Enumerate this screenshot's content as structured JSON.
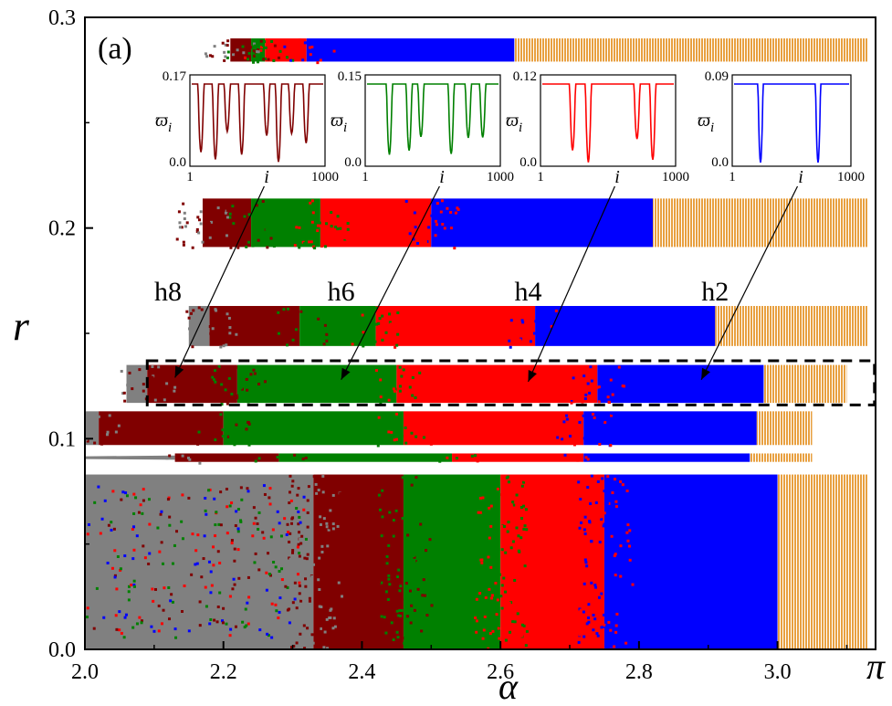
{
  "chart_data": {
    "type": "heatmap",
    "panel_label": "(a)",
    "xlabel": "α",
    "ylabel": "r",
    "xlim": [
      2.0,
      3.1416
    ],
    "ylim": [
      0.0,
      0.3
    ],
    "x_ticks": [
      {
        "value": 2.0,
        "label": "2.0"
      },
      {
        "value": 2.2,
        "label": "2.2"
      },
      {
        "value": 2.4,
        "label": "2.4"
      },
      {
        "value": 2.6,
        "label": "2.6"
      },
      {
        "value": 2.8,
        "label": "2.8"
      },
      {
        "value": 3.0,
        "label": "3.0"
      },
      {
        "value": 3.1416,
        "label": "π"
      }
    ],
    "y_ticks": [
      {
        "value": 0.0,
        "label": "0.0"
      },
      {
        "value": 0.1,
        "label": "0.1"
      },
      {
        "value": 0.2,
        "label": "0.2"
      },
      {
        "value": 0.3,
        "label": "0.3"
      }
    ],
    "colors": {
      "gray": "#808080",
      "h8": "#800000",
      "h6": "#008000",
      "h4": "#ff0000",
      "h2": "#0000ff",
      "orange": "#e8a040"
    },
    "bands": [
      {
        "y0": 0.0,
        "y1": 0.083,
        "start": 2.0,
        "bound_gray": 2.33,
        "bound_h8": 2.46,
        "bound_h6": 2.6,
        "bound_h4": 2.75,
        "bound_h2": 3.0,
        "orange_end": 3.13
      },
      {
        "y0": 0.089,
        "y1": 0.093,
        "start": 2.0,
        "bound_gray": 2.13,
        "bound_h8": 2.28,
        "bound_h6": 2.53,
        "bound_h4": 2.72,
        "bound_h2": 2.96,
        "orange_end": 3.05
      },
      {
        "y0": 0.097,
        "y1": 0.113,
        "start": 2.0,
        "bound_gray": 2.02,
        "bound_h8": 2.2,
        "bound_h6": 2.46,
        "bound_h4": 2.72,
        "bound_h2": 2.97,
        "orange_end": 3.05
      },
      {
        "y0": 0.117,
        "y1": 0.135,
        "start": 2.06,
        "bound_gray": 2.09,
        "bound_h8": 2.22,
        "bound_h6": 2.45,
        "bound_h4": 2.74,
        "bound_h2": 2.98,
        "orange_end": 3.1
      },
      {
        "y0": 0.144,
        "y1": 0.163,
        "start": 2.15,
        "bound_gray": 2.18,
        "bound_h8": 2.31,
        "bound_h6": 2.42,
        "bound_h4": 2.65,
        "bound_h2": 2.91,
        "orange_end": 3.13
      },
      {
        "y0": 0.191,
        "y1": 0.214,
        "start": 2.17,
        "bound_gray": 2.17,
        "bound_h8": 2.24,
        "bound_h6": 2.34,
        "bound_h4": 2.5,
        "bound_h2": 2.82,
        "orange_end": 3.13
      },
      {
        "y0": 0.279,
        "y1": 0.29,
        "start": 2.21,
        "bound_gray": 2.21,
        "bound_h8": 2.24,
        "bound_h6": 2.26,
        "bound_h4": 2.32,
        "bound_h2": 2.62,
        "orange_end": 3.13
      }
    ],
    "region_labels": [
      {
        "label": "h8",
        "x": 2.12,
        "y": 0.17
      },
      {
        "label": "h6",
        "x": 2.37,
        "y": 0.17
      },
      {
        "label": "h4",
        "x": 2.64,
        "y": 0.17
      },
      {
        "label": "h2",
        "x": 2.91,
        "y": 0.17
      }
    ],
    "highlight_box": {
      "x0": 2.09,
      "x1": 3.14,
      "y0": 0.116,
      "y1": 0.137
    },
    "insets": [
      {
        "name": "inset-h8",
        "color": "#800000",
        "ylabel": "ϖ",
        "ylabel_sub": "i",
        "xlabel": "i",
        "ymax_label": "0.17",
        "ymin_label": "0.0",
        "xmin_label": "1",
        "xmax_label": "1000",
        "n_dips": 8,
        "dip_positions": [
          0.07,
          0.18,
          0.27,
          0.38,
          0.57,
          0.66,
          0.76,
          0.87
        ],
        "arrow_target": {
          "x": 2.13,
          "y": 0.129
        }
      },
      {
        "name": "inset-h6",
        "color": "#008000",
        "ylabel": "ϖ",
        "ylabel_sub": "i",
        "xlabel": "i",
        "ymax_label": "0.15",
        "ymin_label": "0.0",
        "xmin_label": "1",
        "xmax_label": "1000",
        "n_dips": 6,
        "dip_positions": [
          0.17,
          0.32,
          0.41,
          0.64,
          0.77,
          0.88
        ],
        "arrow_target": {
          "x": 2.37,
          "y": 0.128
        }
      },
      {
        "name": "inset-h4",
        "color": "#ff0000",
        "ylabel": "ϖ",
        "ylabel_sub": "i",
        "xlabel": "i",
        "ymax_label": "0.12",
        "ymin_label": "0.0",
        "xmin_label": "1",
        "xmax_label": "1000",
        "n_dips": 4,
        "dip_positions": [
          0.23,
          0.35,
          0.72,
          0.84
        ],
        "arrow_target": {
          "x": 2.64,
          "y": 0.127
        }
      },
      {
        "name": "inset-h2",
        "color": "#0000ff",
        "ylabel": "ϖ",
        "ylabel_sub": "i",
        "xlabel": "i",
        "ymax_label": "0.09",
        "ymin_label": "0.0",
        "xmin_label": "1",
        "xmax_label": "1000",
        "n_dips": 2,
        "dip_positions": [
          0.23,
          0.73
        ],
        "arrow_target": {
          "x": 2.89,
          "y": 0.128
        }
      }
    ]
  }
}
